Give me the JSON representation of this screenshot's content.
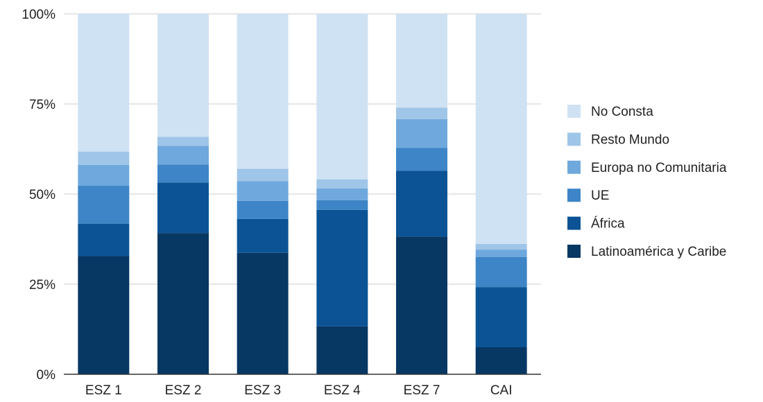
{
  "chart_data": {
    "type": "bar",
    "stacked": true,
    "categories": [
      "ESZ 1",
      "ESZ 2",
      "ESZ 3",
      "ESZ 4",
      "ESZ 7",
      "CAI"
    ],
    "series": [
      {
        "name": "Latinoamérica y Caribe",
        "color": "#073763",
        "values": [
          32.8,
          39.2,
          33.7,
          13.3,
          38.2,
          7.5
        ]
      },
      {
        "name": "África",
        "color": "#0b5394",
        "values": [
          9.0,
          14.0,
          9.4,
          32.3,
          18.3,
          16.7
        ]
      },
      {
        "name": "UE",
        "color": "#3d85c6",
        "values": [
          10.5,
          5.0,
          5.0,
          2.7,
          6.3,
          8.3
        ]
      },
      {
        "name": "Europa no Comunitaria",
        "color": "#6fa8dc",
        "values": [
          5.8,
          5.2,
          5.5,
          3.3,
          8.0,
          2.1
        ]
      },
      {
        "name": "Resto Mundo",
        "color": "#9fc5e8",
        "values": [
          3.7,
          2.5,
          3.4,
          2.5,
          3.2,
          1.6
        ]
      },
      {
        "name": "No Consta",
        "color": "#cfe2f3",
        "values": [
          38.2,
          34.1,
          43.0,
          45.9,
          26.0,
          63.8
        ]
      }
    ],
    "y_ticks": [
      "0%",
      "25%",
      "50%",
      "75%",
      "100%"
    ],
    "ylim": [
      0,
      100
    ],
    "grid": true,
    "legend_position": "right"
  }
}
